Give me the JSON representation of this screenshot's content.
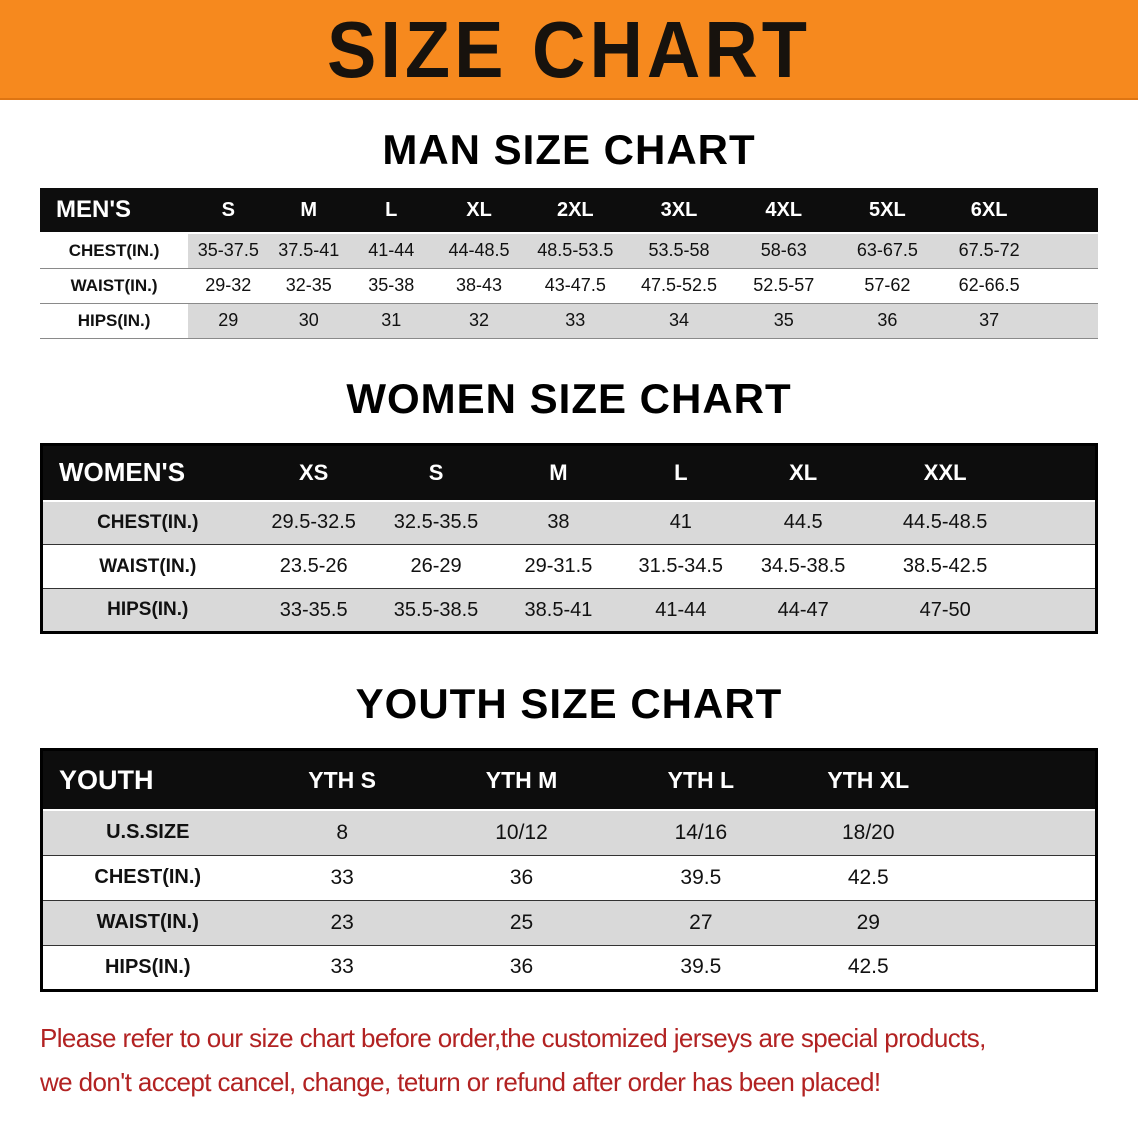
{
  "banner": {
    "title": "SIZE CHART",
    "bg_color": "#F6891E"
  },
  "chart_data": [
    {
      "type": "table",
      "title": "MAN SIZE CHART",
      "header": [
        "MEN'S",
        "S",
        "M",
        "L",
        "XL",
        "2XL",
        "3XL",
        "4XL",
        "5XL",
        "6XL"
      ],
      "rows": [
        {
          "label": "CHEST(IN.)",
          "values": [
            "35-37.5",
            "37.5-41",
            "41-44",
            "44-48.5",
            "48.5-53.5",
            "53.5-58",
            "58-63",
            "63-67.5",
            "67.5-72"
          ]
        },
        {
          "label": "WAIST(IN.)",
          "values": [
            "29-32",
            "32-35",
            "35-38",
            "38-43",
            "43-47.5",
            "47.5-52.5",
            "52.5-57",
            "57-62",
            "62-66.5"
          ]
        },
        {
          "label": "HIPS(IN.)",
          "values": [
            "29",
            "30",
            "31",
            "32",
            "33",
            "34",
            "35",
            "36",
            "37"
          ]
        }
      ]
    },
    {
      "type": "table",
      "title": "WOMEN SIZE CHART",
      "header": [
        "WOMEN'S",
        "XS",
        "S",
        "M",
        "L",
        "XL",
        "XXL"
      ],
      "rows": [
        {
          "label": "CHEST(IN.)",
          "values": [
            "29.5-32.5",
            "32.5-35.5",
            "38",
            "41",
            "44.5",
            "44.5-48.5"
          ]
        },
        {
          "label": "WAIST(IN.)",
          "values": [
            "23.5-26",
            "26-29",
            "29-31.5",
            "31.5-34.5",
            "34.5-38.5",
            "38.5-42.5"
          ]
        },
        {
          "label": "HIPS(IN.)",
          "values": [
            "33-35.5",
            "35.5-38.5",
            "38.5-41",
            "41-44",
            "44-47",
            "47-50"
          ]
        }
      ]
    },
    {
      "type": "table",
      "title": "YOUTH SIZE CHART",
      "header": [
        "YOUTH",
        "YTH S",
        "YTH M",
        "YTH L",
        "YTH XL"
      ],
      "rows": [
        {
          "label": "U.S.SIZE",
          "values": [
            "8",
            "10/12",
            "14/16",
            "18/20"
          ]
        },
        {
          "label": "CHEST(IN.)",
          "values": [
            "33",
            "36",
            "39.5",
            "42.5"
          ]
        },
        {
          "label": "WAIST(IN.)",
          "values": [
            "23",
            "25",
            "27",
            "29"
          ]
        },
        {
          "label": "HIPS(IN.)",
          "values": [
            "33",
            "36",
            "39.5",
            "42.5"
          ]
        }
      ]
    }
  ],
  "disclaimer": {
    "line1": "Please refer to our size chart before order,the customized jerseys are special products,",
    "line2": "we don't accept cancel, change, teturn or refund after order has been placed!",
    "color": "#B22222"
  }
}
